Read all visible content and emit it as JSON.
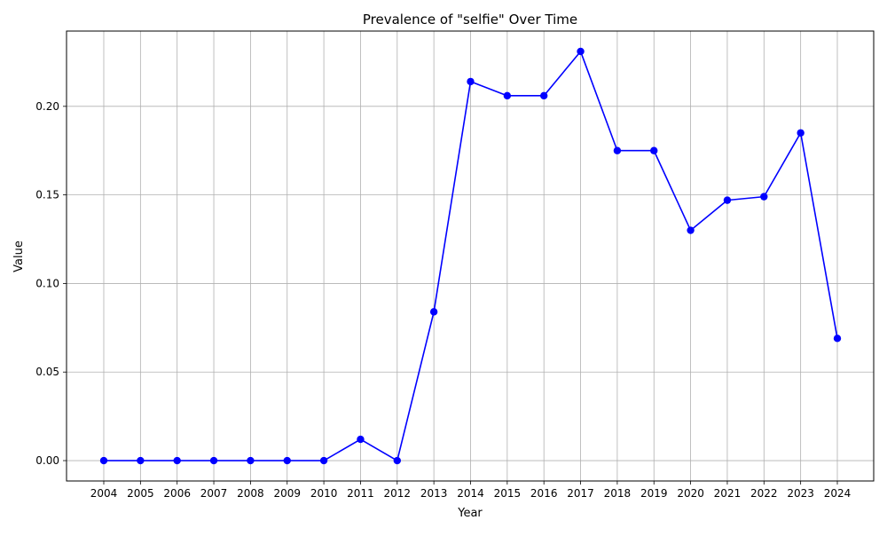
{
  "chart_data": {
    "type": "line",
    "title": "Prevalence of \"selfie\" Over Time",
    "xlabel": "Year",
    "ylabel": "Value",
    "categories": [
      "2004",
      "2005",
      "2006",
      "2007",
      "2008",
      "2009",
      "2010",
      "2011",
      "2012",
      "2013",
      "2014",
      "2015",
      "2016",
      "2017",
      "2018",
      "2019",
      "2020",
      "2021",
      "2022",
      "2023",
      "2024"
    ],
    "series": [
      {
        "values": [
          0.0,
          0.0,
          0.0,
          0.0,
          0.0,
          0.0,
          0.0,
          0.012,
          0.0,
          0.084,
          0.214,
          0.206,
          0.206,
          0.231,
          0.175,
          0.175,
          0.13,
          0.147,
          0.149,
          0.185,
          0.069
        ],
        "color": "#0000ff",
        "marker": "circle"
      }
    ],
    "yticks": [
      "0.00",
      "0.05",
      "0.10",
      "0.15",
      "0.20"
    ],
    "ylim": [
      -0.0115,
      0.2425
    ],
    "grid": true
  }
}
